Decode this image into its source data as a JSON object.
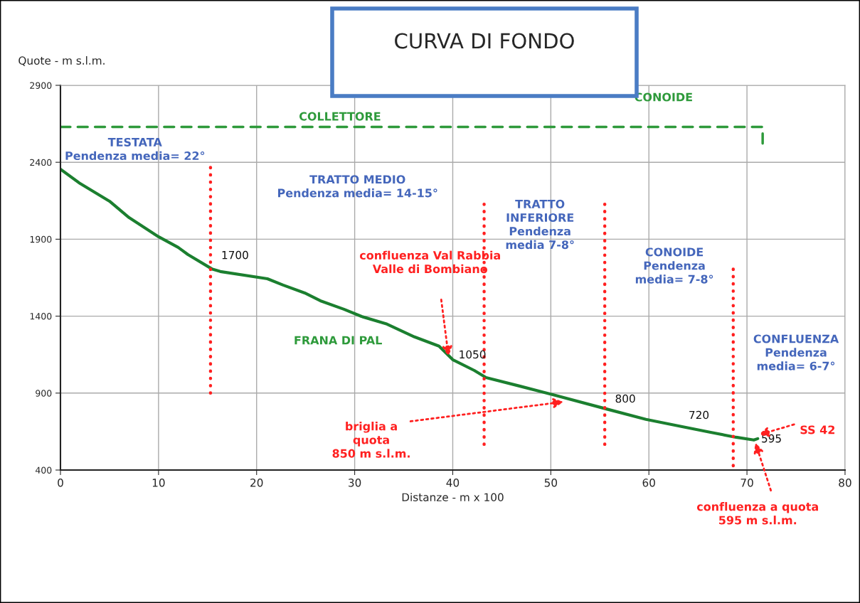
{
  "chart_data": {
    "type": "line",
    "title": "CURVA DI FONDO",
    "xlabel": "Distanze - m x 100",
    "ylabel": "Quote - m s.l.m.",
    "xlim": [
      0,
      80
    ],
    "xticks": [
      0,
      10,
      20,
      30,
      40,
      50,
      60,
      70,
      80
    ],
    "ylim": [
      400,
      2900
    ],
    "yticks": [
      400,
      900,
      1400,
      1900,
      2400,
      2900
    ],
    "grid": true,
    "series": [
      {
        "color": "#1b7f2f",
        "x": [
          0,
          2,
          5,
          7,
          10,
          12,
          13,
          15.5,
          16.3,
          21.1,
          22.7,
          24.9,
          26.5,
          28.9,
          30.7,
          33.3,
          36.1,
          38.6,
          40.0,
          42.2,
          43.4,
          46.8,
          50.2,
          55.6,
          59.7,
          63.3,
          66.3,
          68.9,
          70.7,
          71.1
        ],
        "values": [
          2355,
          2262,
          2147,
          2040,
          1916,
          1847,
          1800,
          1705,
          1690,
          1643,
          1602,
          1551,
          1500,
          1445,
          1398,
          1348,
          1265,
          1205,
          1117,
          1047,
          1001,
          946,
          890,
          798,
          729,
          683,
          645,
          613,
          595,
          604
        ]
      },
      {
        "color": "#2e9a3b",
        "line_style": "dashed",
        "x": [
          0,
          71.6,
          71.6
        ],
        "values": [
          2630,
          2630,
          2500
        ]
      },
      {
        "color": "#ff2020",
        "line_style": "dotted",
        "x": [
          15.3,
          15.3
        ],
        "values": [
          900,
          2390
        ]
      },
      {
        "color": "#ff2020",
        "line_style": "dotted",
        "x": [
          43.2,
          43.2
        ],
        "values": [
          567,
          2128
        ]
      },
      {
        "color": "#ff2020",
        "line_style": "dotted",
        "x": [
          55.5,
          55.5
        ],
        "values": [
          567,
          2128
        ]
      },
      {
        "color": "#ff2020",
        "line_style": "dotted",
        "x": [
          68.6,
          68.6
        ],
        "values": [
          428,
          1717
        ]
      }
    ],
    "annotations": [
      "COLLETTORE",
      "CONOIDE",
      "TESTATA\nPendenza media= 22°",
      "TRATTO MEDIO\nPendenza media= 14-15°",
      "TRATTO\nINFERIORE\nPendenza\nmedia 7-8°",
      "CONOIDE\nPendenza\nmedia= 7-8°",
      "CONFLUENZA\nPendenza\nmedia= 6-7°",
      "FRANA DI PAL",
      "confluenza Val Rabbia\nValle di Bombiano",
      "briglia a\nquota\n850 m s.l.m.",
      "SS 42",
      "confluenza a quota\n595 m s.l.m.",
      {
        "text": "1700",
        "x": 15.5,
        "y": 1705
      },
      {
        "text": "1050",
        "x": 40.0,
        "y": 1117
      },
      {
        "text": "800",
        "x": 55.6,
        "y": 798
      },
      {
        "text": "720",
        "x": 64.5,
        "y": 670
      },
      {
        "text": "595",
        "x": 70.7,
        "y": 595
      }
    ]
  }
}
